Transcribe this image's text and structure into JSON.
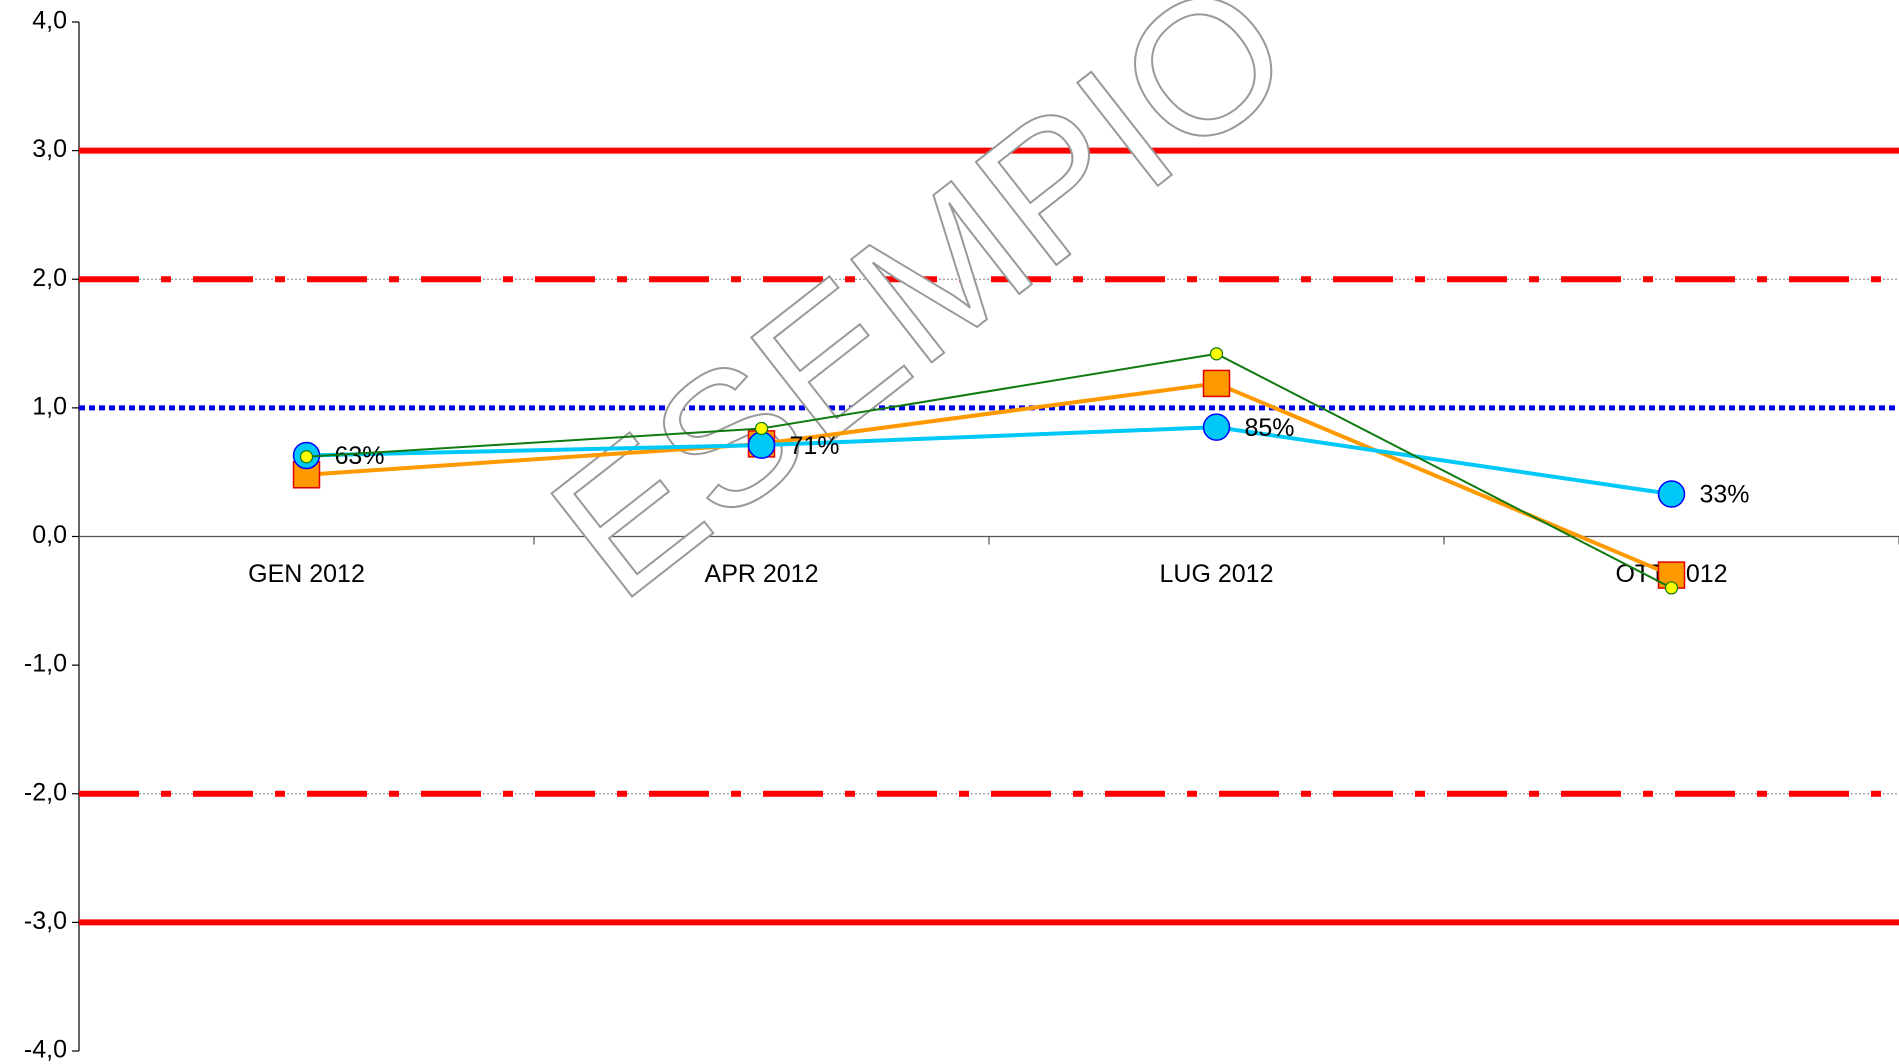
{
  "chart_data": {
    "type": "line",
    "watermark": "ESEMPIO",
    "categories": [
      "GEN 2012",
      "APR 2012",
      "LUG 2012",
      "OTT 2012"
    ],
    "ylim": [
      -4,
      4
    ],
    "yticks": [
      {
        "value": -4,
        "label": "-4,0"
      },
      {
        "value": -3,
        "label": "-3,0"
      },
      {
        "value": -2,
        "label": "-2,0"
      },
      {
        "value": -1,
        "label": "-1,0"
      },
      {
        "value": 0,
        "label": "0,0"
      },
      {
        "value": 1,
        "label": "1,0"
      },
      {
        "value": 2,
        "label": "2,0"
      },
      {
        "value": 3,
        "label": "3,0"
      },
      {
        "value": 4,
        "label": "4,0"
      }
    ],
    "reference_lines": [
      {
        "value": 3,
        "color": "#ff0000",
        "style": "solid"
      },
      {
        "value": 2,
        "color": "#ff0000",
        "style": "dashdot"
      },
      {
        "value": 1,
        "color": "#0000ee",
        "style": "dotted"
      },
      {
        "value": -2,
        "color": "#ff0000",
        "style": "dashdot"
      },
      {
        "value": -3,
        "color": "#ff0000",
        "style": "solid"
      }
    ],
    "series": [
      {
        "color": "#ff9900",
        "marker": "square",
        "values": [
          0.48,
          0.72,
          1.19,
          -0.3
        ]
      },
      {
        "color": "#00c8f8",
        "marker": "circle",
        "values": [
          0.63,
          0.71,
          0.85,
          0.33
        ],
        "value_labels": [
          "63%",
          "71%",
          "85%",
          "33%"
        ]
      },
      {
        "color": "#107a10",
        "marker": "small-circle",
        "values": [
          0.62,
          0.84,
          1.42,
          -0.4
        ]
      }
    ]
  }
}
